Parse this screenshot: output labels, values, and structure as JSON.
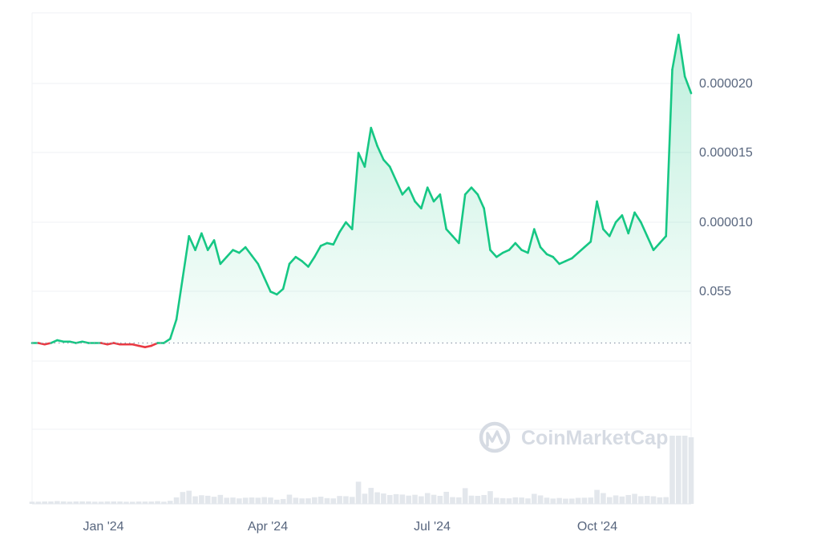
{
  "watermark": {
    "label": "CoinMarketCap"
  },
  "colors": {
    "up": "#16c784",
    "down": "#ea3943",
    "grid": "#eff2f5",
    "axis_text": "#58667e",
    "baseline": "#8f9bab",
    "volume": "#e3e7ec",
    "watermark": "#d6dbe3"
  },
  "chart_data": {
    "type": "area",
    "x_ticks": [
      "Jan '24",
      "Apr '24",
      "Jul '24",
      "Oct '24"
    ],
    "y_tick_labels": [
      "0.055",
      "0.000010",
      "0.000015",
      "0.000020"
    ],
    "baseline_value": 1.3e-06,
    "grid": true,
    "y_axis_position": "right",
    "series": [
      {
        "values": [
          1.3e-06,
          1.3e-06,
          1.2e-06,
          1.3e-06,
          1.5e-06,
          1.4e-06,
          1.4e-06,
          1.3e-06,
          1.4e-06,
          1.3e-06,
          1.3e-06,
          1.3e-06,
          1.2e-06,
          1.3e-06,
          1.2e-06,
          1.2e-06,
          1.2e-06,
          1.1e-06,
          1e-06,
          1.1e-06,
          1.3e-06,
          1.3e-06,
          1.6e-06,
          3e-06,
          6e-06,
          9e-06,
          8e-06,
          9.2e-06,
          8e-06,
          8.7e-06,
          7e-06,
          7.5e-06,
          8e-06,
          7.8e-06,
          8.2e-06,
          7.6e-06,
          7e-06,
          6e-06,
          5e-06,
          4.8e-06,
          5.2e-06,
          7e-06,
          7.5e-06,
          7.2e-06,
          6.8e-06,
          7.5e-06,
          8.3e-06,
          8.5e-06,
          8.4e-06,
          9.3e-06,
          1e-05,
          9.5e-06,
          1.5e-05,
          1.4e-05,
          1.68e-05,
          1.55e-05,
          1.45e-05,
          1.4e-05,
          1.3e-05,
          1.2e-05,
          1.25e-05,
          1.15e-05,
          1.1e-05,
          1.25e-05,
          1.15e-05,
          1.2e-05,
          9.5e-06,
          9e-06,
          8.5e-06,
          1.2e-05,
          1.25e-05,
          1.2e-05,
          1.1e-05,
          8e-06,
          7.5e-06,
          7.8e-06,
          8e-06,
          8.5e-06,
          8e-06,
          7.8e-06,
          9.5e-06,
          8.2e-06,
          7.7e-06,
          7.5e-06,
          7e-06,
          7.2e-06,
          7.4e-06,
          7.8e-06,
          8.2e-06,
          8.6e-06,
          1.15e-05,
          9.5e-06,
          9e-06,
          1e-05,
          1.05e-05,
          9.2e-06,
          1.07e-05,
          1e-05,
          9e-06,
          8e-06,
          8.5e-06,
          9e-06,
          2.1e-05,
          2.35e-05,
          2.05e-05,
          1.93e-05
        ]
      }
    ]
  }
}
